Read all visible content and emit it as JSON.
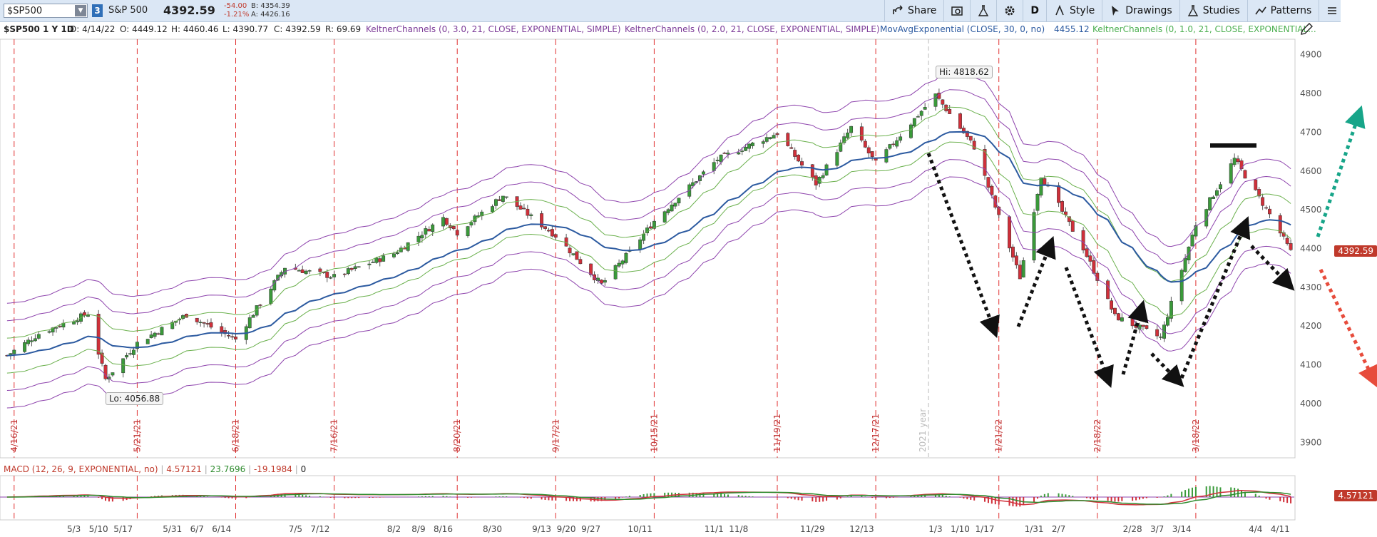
{
  "toolbar": {
    "symbol": "$SP500",
    "badge": "3",
    "name": "S&P 500",
    "last": "4392.59",
    "change": "-54.00",
    "change_pct": "-1.21%",
    "bid": "B: 4354.39",
    "ask": "A: 4426.16",
    "share": "Share",
    "period": "D",
    "style": "Style",
    "drawings": "Drawings",
    "studies": "Studies",
    "patterns": "Patterns"
  },
  "info": {
    "title": "$SP500 1 Y 1D",
    "date": "D: 4/14/22",
    "open": "O: 4449.12",
    "high": "H: 4460.46",
    "low": "L: 4390.77",
    "close": "C: 4392.59",
    "range": "R: 69.69",
    "study1": "KeltnerChannels (0, 3.0, 21, CLOSE, EXPONENTIAL, SIMPLE)",
    "study2": "KeltnerChannels (0, 2.0, 21, CLOSE, EXPONENTIAL, SIMPLE)",
    "study3": "MovAvgExponential (CLOSE, 30, 0, no)",
    "study3_value": "4455.12",
    "study4": "KeltnerChannels (0, 1.0, 21, CLOSE, EXPONENTIAL..."
  },
  "annotations": {
    "high": "Hi: 4818.62",
    "low": "Lo: 4056.88",
    "year": "2021 year"
  },
  "price_label": "4392.59",
  "macd": {
    "label": "MACD (12, 26, 9, EXPONENTIAL, no)",
    "value": "4.57121",
    "avg": "23.7696",
    "diff": "-19.1984",
    "zero": "0",
    "price_label": "4.57121"
  },
  "chart_data": {
    "type": "candlestick",
    "title": "$SP500 1 Y 1D",
    "ylim": [
      3860,
      4940
    ],
    "y_ticks": [
      3900,
      4000,
      4100,
      4200,
      4300,
      4400,
      4500,
      4600,
      4700,
      4800,
      4900
    ],
    "x_labels": [
      "5/3",
      "5/10",
      "5/17",
      "5/31",
      "6/7",
      "6/14",
      "7/5",
      "7/12",
      "8/2",
      "8/9",
      "8/16",
      "8/30",
      "9/13",
      "9/20",
      "9/27",
      "10/11",
      "11/1",
      "11/8",
      "11/29",
      "12/13",
      "1/3",
      "1/10",
      "1/17",
      "1/31",
      "2/7",
      "2/28",
      "3/7",
      "3/14",
      "4/4",
      "4/11"
    ],
    "expiration_markers": [
      "4/16/21",
      "5/21/21",
      "6/18/21",
      "7/16/21",
      "8/20/21",
      "9/17/21",
      "10/15/21",
      "11/19/21",
      "12/17/21",
      "1/21/22",
      "2/18/22",
      "3/18/22"
    ],
    "close_trend": [
      [
        "4/14/21",
        4124
      ],
      [
        "4/23/21",
        4180
      ],
      [
        "5/7/21",
        4232
      ],
      [
        "5/12/21",
        4063
      ],
      [
        "5/21/21",
        4156
      ],
      [
        "6/4/21",
        4229
      ],
      [
        "6/18/21",
        4166
      ],
      [
        "7/2/21",
        4352
      ],
      [
        "7/16/21",
        4327
      ],
      [
        "8/2/21",
        4387
      ],
      [
        "8/16/21",
        4479
      ],
      [
        "8/20/21",
        4441
      ],
      [
        "9/2/21",
        4537
      ],
      [
        "9/17/21",
        4433
      ],
      [
        "9/30/21",
        4307
      ],
      [
        "10/8/21",
        4391
      ],
      [
        "10/15/21",
        4471
      ],
      [
        "11/2/21",
        4630
      ],
      [
        "11/19/21",
        4698
      ],
      [
        "11/30/21",
        4567
      ],
      [
        "12/10/21",
        4712
      ],
      [
        "12/17/21",
        4620
      ],
      [
        "1/3/22",
        4796
      ],
      [
        "1/14/22",
        4662
      ],
      [
        "1/27/22",
        4326
      ],
      [
        "2/2/22",
        4589
      ],
      [
        "2/14/22",
        4401
      ],
      [
        "2/23/22",
        4225
      ],
      [
        "3/8/22",
        4170
      ],
      [
        "3/18/22",
        4463
      ],
      [
        "3/29/22",
        4631
      ],
      [
        "4/8/22",
        4488
      ],
      [
        "4/14/22",
        4392
      ]
    ],
    "last_price": 4392.59,
    "period_high": 4818.62,
    "period_low": 4056.88,
    "ema30_last": 4455.12,
    "macd": {
      "value": 4.57121,
      "avg": 23.7696,
      "diff": -19.1984
    }
  }
}
